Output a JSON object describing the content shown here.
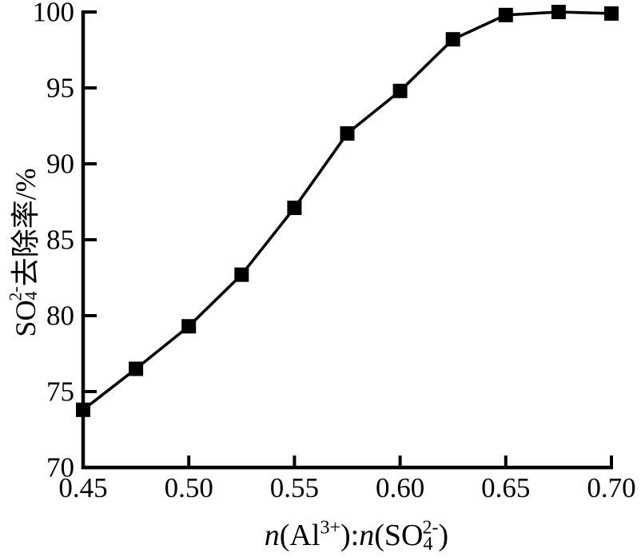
{
  "chart_data": {
    "type": "line",
    "title": "",
    "x": [
      0.45,
      0.475,
      0.5,
      0.525,
      0.55,
      0.575,
      0.6,
      0.625,
      0.65,
      0.675,
      0.7
    ],
    "series": [
      {
        "name": "SO4^2- removal rate",
        "values": [
          73.8,
          76.5,
          79.3,
          82.7,
          87.1,
          92.0,
          94.8,
          98.2,
          99.8,
          100.0,
          99.9
        ]
      }
    ],
    "xlabel": "n(Al3+):n(SO42-)",
    "ylabel": "SO42-去除率/%",
    "xlabel_parts": [
      {
        "t": "n",
        "italic": true
      },
      {
        "t": "(Al"
      },
      {
        "t": "3+",
        "sup": true
      },
      {
        "t": "):"
      },
      {
        "t": "n",
        "italic": true
      },
      {
        "t": "(SO"
      },
      {
        "t": "4",
        "sub": true
      },
      {
        "t": "2-",
        "sup": true
      },
      {
        "t": ")"
      }
    ],
    "ylabel_parts": [
      {
        "t": "SO"
      },
      {
        "t": "4",
        "sub": true
      },
      {
        "t": "2-",
        "sup": true
      },
      {
        "t": "去除率/%"
      }
    ],
    "xlim": [
      0.45,
      0.7
    ],
    "ylim": [
      70,
      100
    ],
    "xtick_values": [
      0.45,
      0.5,
      0.55,
      0.6,
      0.65,
      0.7
    ],
    "xtick_labels": [
      "0.45",
      "0.50",
      "0.55",
      "0.60",
      "0.65",
      "0.70"
    ],
    "ytick_values": [
      70,
      75,
      80,
      85,
      90,
      95,
      100
    ],
    "ytick_labels": [
      "70",
      "75",
      "80",
      "85",
      "90",
      "95",
      "100"
    ],
    "grid": false,
    "legend": null,
    "marker": "filled-square",
    "colors": {
      "line": "#000000",
      "marker": "#000000",
      "text": "#000000",
      "background": "#ffffff"
    }
  }
}
